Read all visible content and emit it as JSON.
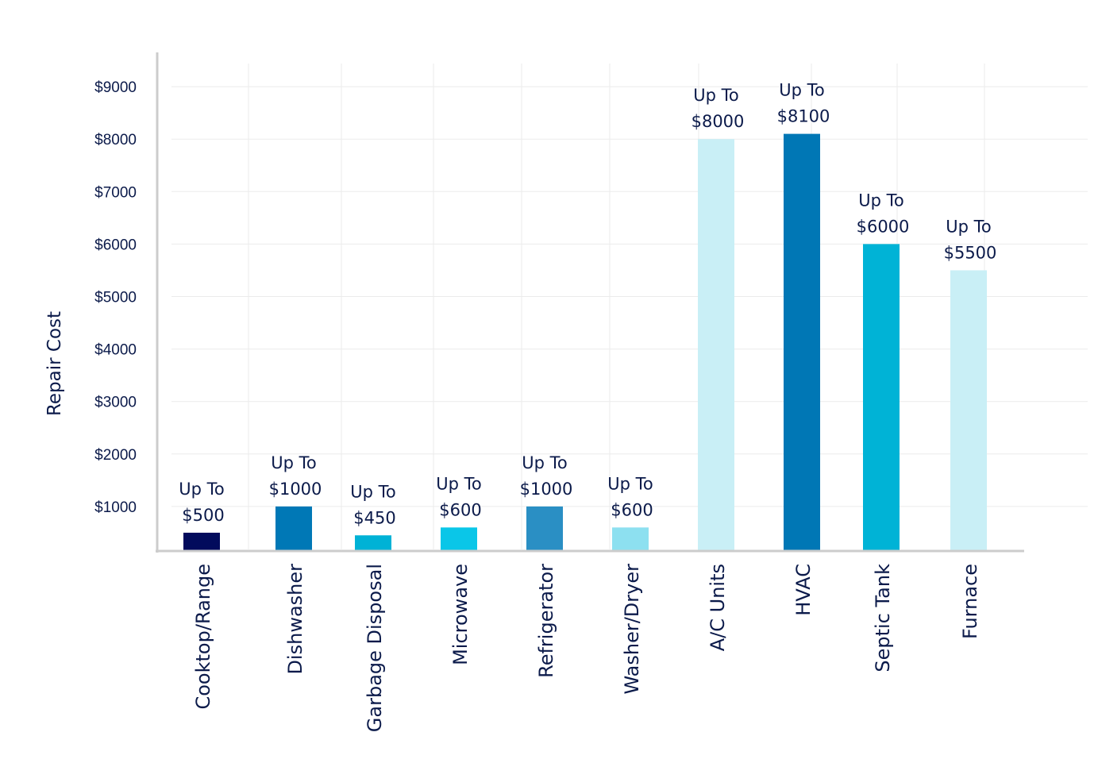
{
  "chart_data": {
    "type": "bar",
    "title": "",
    "xlabel": "",
    "ylabel": "Repair Cost",
    "ylim": [
      0,
      9000
    ],
    "yticks": [
      1000,
      2000,
      3000,
      4000,
      5000,
      6000,
      7000,
      8000,
      9000
    ],
    "ytick_labels": [
      "$1000",
      "$2000",
      "$3000",
      "$4000",
      "$5000",
      "$6000",
      "$7000",
      "$8000",
      "$9000"
    ],
    "grid": true,
    "legend": "none",
    "categories": [
      "Cooktop/Range",
      "Dishwasher",
      "Garbage Disposal",
      "Microwave",
      "Refrigerator",
      "Washer/Dryer",
      "A/C Units",
      "HVAC",
      "Septic Tank",
      "Furnace"
    ],
    "values": [
      500,
      1000,
      450,
      600,
      1000,
      600,
      8000,
      8100,
      6000,
      5500
    ],
    "label_prefix": "Up To",
    "data_labels": [
      "$500",
      "$1000",
      "$450",
      "$600",
      "$1000",
      "$600",
      "$8000",
      "$8100",
      "$6000",
      "$5500"
    ],
    "bar_colors": [
      "#020b5c",
      "#0078b6",
      "#00b2d6",
      "#0ac6e8",
      "#2a8fc4",
      "#8de0f0",
      "#c9eff6",
      "#0077b5",
      "#00b3d6",
      "#c9eff6"
    ]
  }
}
